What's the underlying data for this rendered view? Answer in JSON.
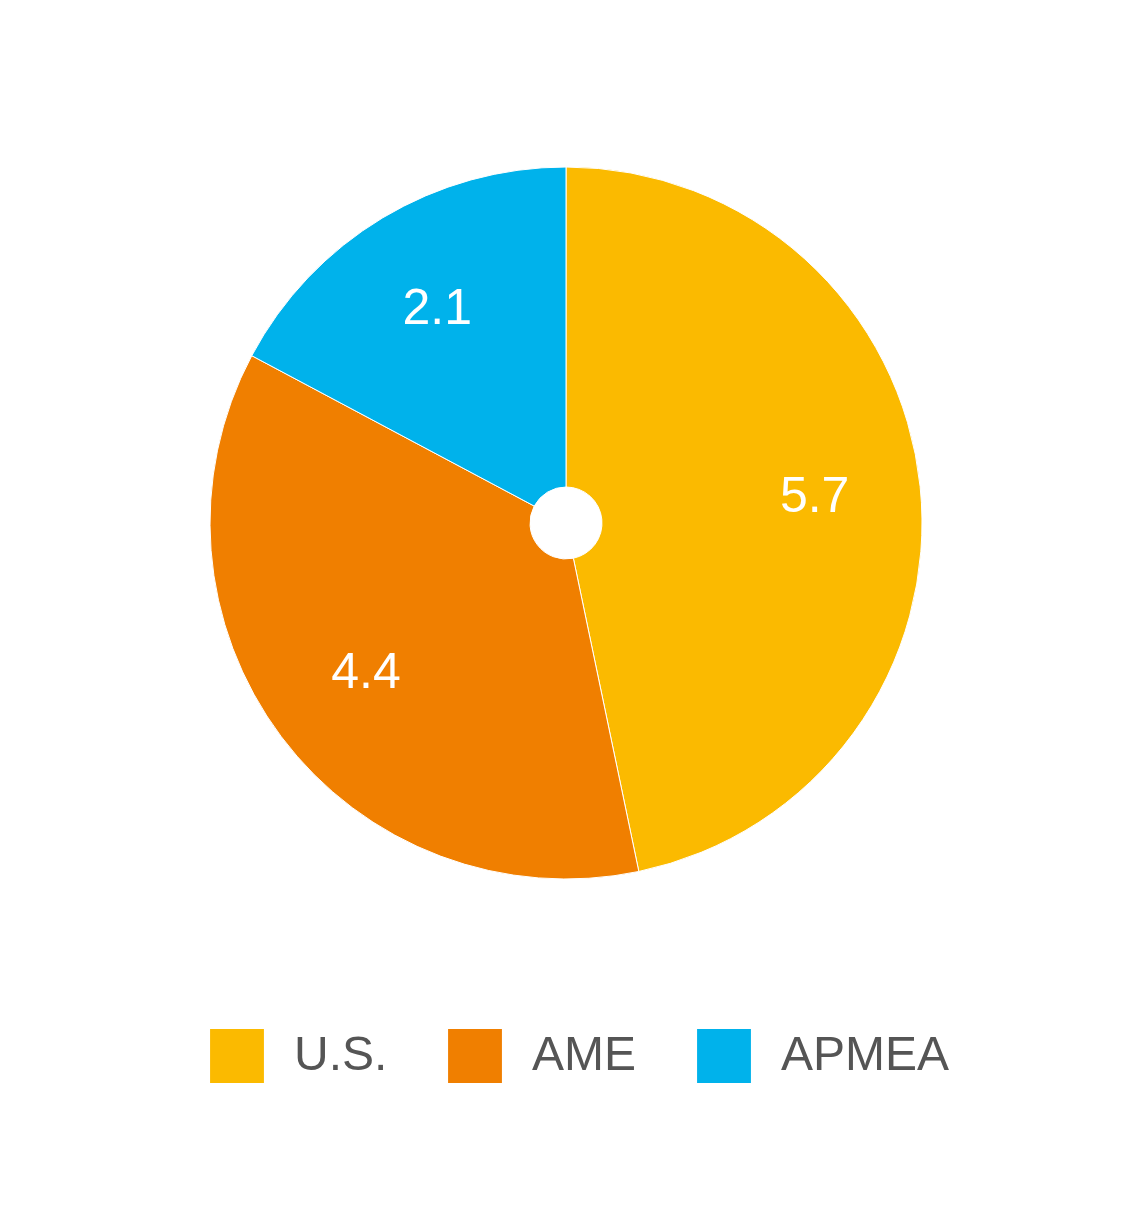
{
  "chart_data": {
    "type": "pie",
    "categories": [
      "U.S.",
      "AME",
      "APMEA"
    ],
    "values": [
      5.7,
      4.4,
      2.1
    ],
    "colors": [
      "#fbba00",
      "#f07f00",
      "#00b2eb"
    ],
    "data_labels": true,
    "legend": "bottom"
  }
}
